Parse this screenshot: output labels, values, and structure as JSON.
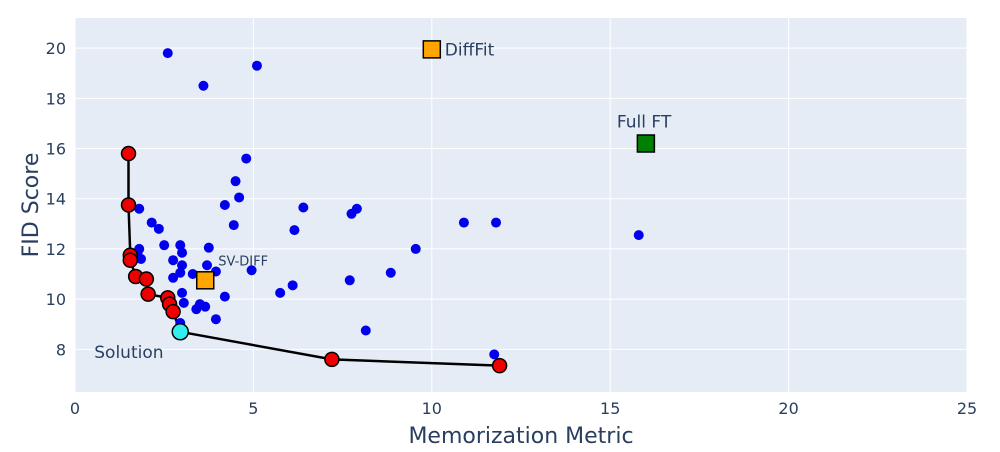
{
  "chart_data": {
    "type": "scatter",
    "title": "",
    "xlabel": "Memorization Metric",
    "ylabel": "FID Score",
    "xlim": [
      0,
      25
    ],
    "ylim": [
      6.3,
      21.2
    ],
    "xticks": [
      0,
      5,
      10,
      15,
      20,
      25
    ],
    "yticks": [
      8,
      10,
      12,
      14,
      16,
      18,
      20
    ],
    "grid": true,
    "legend": "none",
    "colors": {
      "plot_bg": "#e5ecf6",
      "grid": "#ffffff",
      "candidates": "#0000ee",
      "frontier": "#ee0000",
      "frontier_line": "#000000",
      "solution": "#33eeee",
      "sv_diff": "#ffa500",
      "difffit": "#ffa500",
      "full_ft": "#008000"
    },
    "series": [
      {
        "marker": "circle-small",
        "color": "#0000ee",
        "points": [
          [
            2.6,
            19.8
          ],
          [
            5.1,
            19.3
          ],
          [
            3.6,
            18.5
          ],
          [
            4.8,
            15.6
          ],
          [
            4.5,
            14.7
          ],
          [
            4.6,
            14.05
          ],
          [
            4.2,
            13.75
          ],
          [
            1.8,
            13.6
          ],
          [
            6.4,
            13.65
          ],
          [
            7.9,
            13.6
          ],
          [
            7.75,
            13.4
          ],
          [
            10.9,
            13.05
          ],
          [
            11.8,
            13.05
          ],
          [
            2.15,
            13.05
          ],
          [
            2.35,
            12.8
          ],
          [
            4.45,
            12.95
          ],
          [
            6.15,
            12.75
          ],
          [
            15.8,
            12.55
          ],
          [
            2.5,
            12.15
          ],
          [
            2.95,
            12.15
          ],
          [
            3.75,
            12.05
          ],
          [
            9.55,
            12.0
          ],
          [
            1.8,
            12.0
          ],
          [
            1.75,
            11.85
          ],
          [
            3.0,
            11.85
          ],
          [
            1.7,
            11.75
          ],
          [
            1.85,
            11.6
          ],
          [
            2.75,
            11.55
          ],
          [
            3.0,
            11.35
          ],
          [
            3.7,
            11.35
          ],
          [
            4.95,
            11.15
          ],
          [
            3.95,
            11.1
          ],
          [
            2.95,
            11.05
          ],
          [
            3.3,
            11.0
          ],
          [
            8.85,
            11.05
          ],
          [
            2.75,
            10.85
          ],
          [
            7.7,
            10.75
          ],
          [
            3.6,
            10.65
          ],
          [
            6.1,
            10.55
          ],
          [
            5.75,
            10.25
          ],
          [
            3.0,
            10.25
          ],
          [
            4.2,
            10.1
          ],
          [
            3.05,
            9.85
          ],
          [
            3.5,
            9.8
          ],
          [
            3.65,
            9.7
          ],
          [
            3.4,
            9.6
          ],
          [
            3.95,
            9.2
          ],
          [
            2.95,
            9.05
          ],
          [
            8.15,
            8.75
          ],
          [
            11.75,
            7.8
          ]
        ]
      },
      {
        "marker": "circle-outlined",
        "color": "#ee0000",
        "line": true,
        "points": [
          [
            1.5,
            15.8
          ],
          [
            1.5,
            13.75
          ],
          [
            1.55,
            11.75
          ],
          [
            1.55,
            11.55
          ],
          [
            1.7,
            10.9
          ],
          [
            2.0,
            10.8
          ],
          [
            2.05,
            10.2
          ],
          [
            2.6,
            10.05
          ],
          [
            2.65,
            9.8
          ],
          [
            2.75,
            9.5
          ],
          [
            2.95,
            8.7
          ],
          [
            7.2,
            7.6
          ],
          [
            11.9,
            7.35
          ]
        ]
      }
    ],
    "annotations": [
      {
        "name": "solution",
        "label": "Solution",
        "x": 2.95,
        "y": 8.7,
        "marker": "circle",
        "color": "#33eeee"
      },
      {
        "name": "sv-diff",
        "label": "SV-DIFF",
        "x": 3.65,
        "y": 10.75,
        "marker": "square",
        "color": "#ffa500"
      },
      {
        "name": "difffit",
        "label": "DiffFit",
        "x": 10.0,
        "y": 19.95,
        "marker": "square",
        "color": "#ffa500"
      },
      {
        "name": "full-ft",
        "label": "Full FT",
        "x": 16.0,
        "y": 16.2,
        "marker": "square",
        "color": "#008000"
      }
    ]
  }
}
